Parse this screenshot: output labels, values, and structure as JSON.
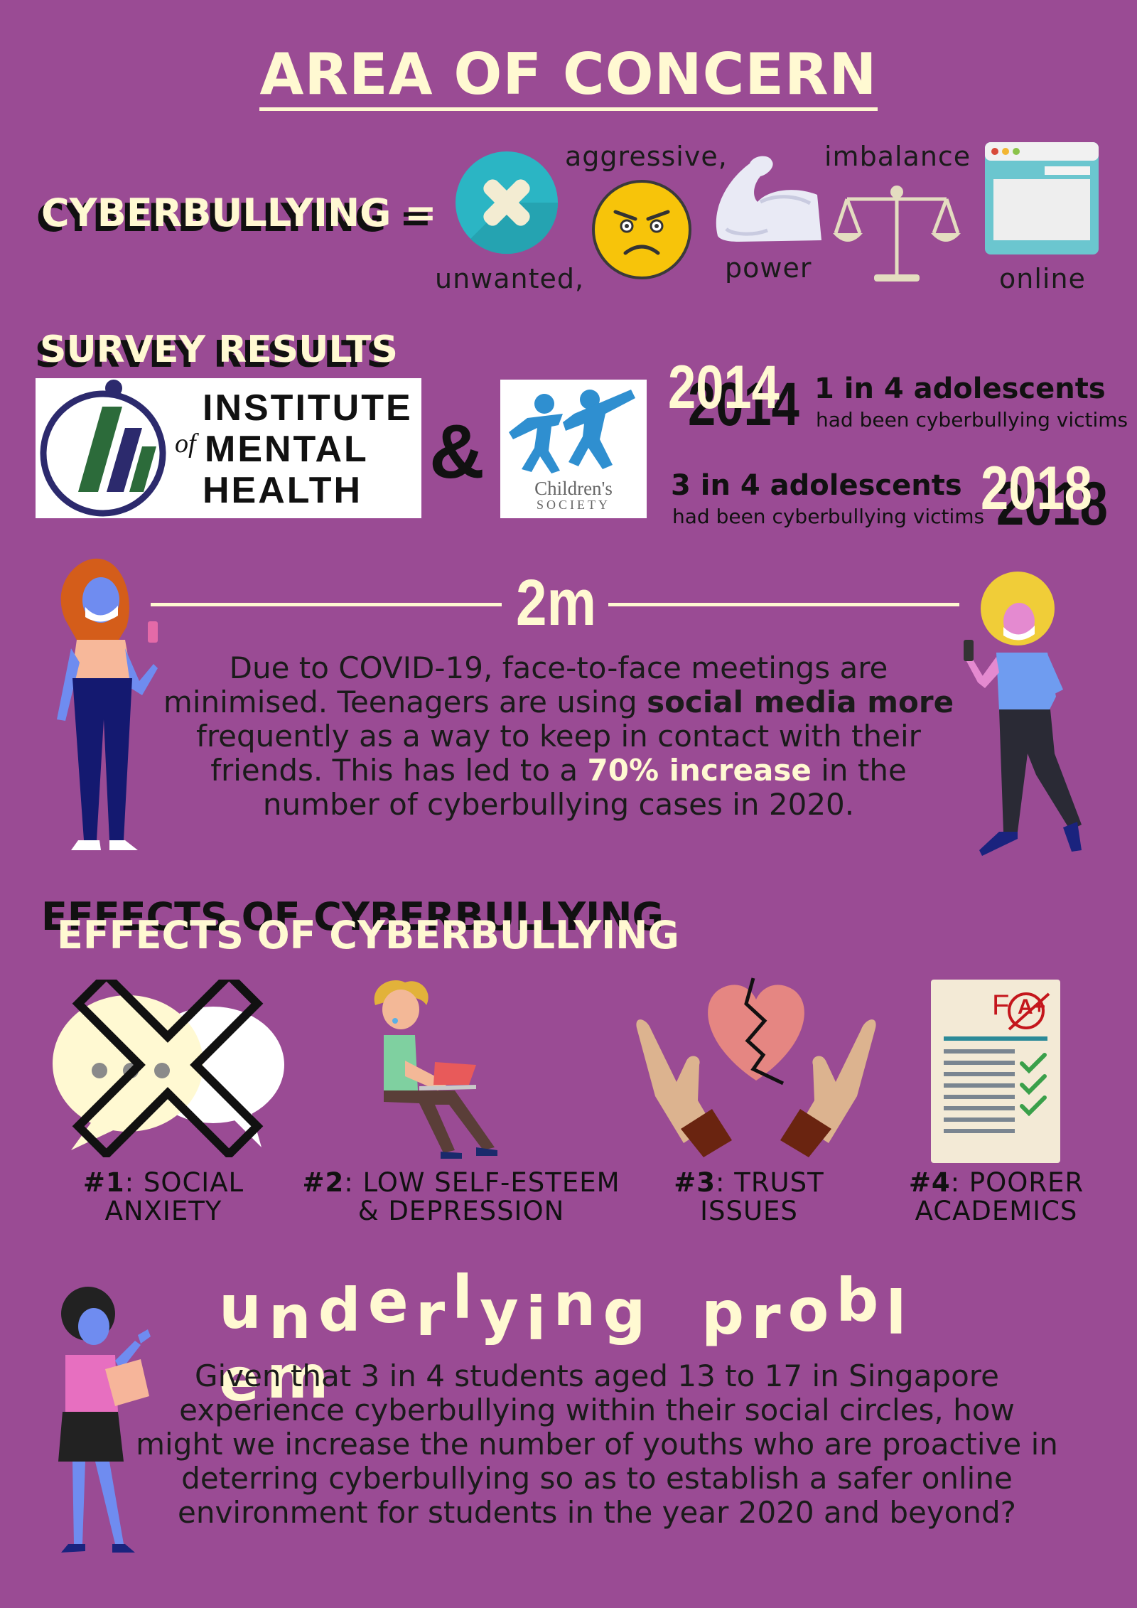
{
  "header": {
    "title": "AREA OF CONCERN"
  },
  "definition": {
    "term": "CYBERBULLYING =",
    "items": [
      {
        "label": "unwanted,",
        "icon": "x-circle-icon"
      },
      {
        "label": "aggressive,",
        "icon": "angry-face-icon"
      },
      {
        "label": "power",
        "icon": "flexed-arm-icon"
      },
      {
        "label": "imbalance",
        "icon": "balance-scale-icon"
      },
      {
        "label": "online",
        "icon": "browser-window-icon"
      }
    ]
  },
  "survey": {
    "heading": "SURVEY RESULTS",
    "imh_logo": {
      "line1": "INSTITUTE",
      "of": "of",
      "line2": "MENTAL",
      "line3": "HEALTH"
    },
    "ampersand": "&",
    "cs_logo": {
      "line1": "Children's",
      "line2": "SOCIETY"
    },
    "stats": [
      {
        "year": "2014",
        "headline": "1 in 4 adolescents",
        "detail": "had been cyberbullying victims"
      },
      {
        "year": "2018",
        "headline": "3 in 4 adolescents",
        "detail": "had been cyberbullying victims"
      }
    ]
  },
  "distance": {
    "label": "2m"
  },
  "covid": {
    "line1": "Due to COVID-19, face-to-face meetings are",
    "line2a": "minimised. Teenagers are using ",
    "line2b": "social media more",
    "line3": "frequently as a way to keep in contact with their",
    "line4a": "friends. This has led to a ",
    "line4b": "70% increase",
    "line4c": " in the",
    "line5": "number of cyberbullying cases in 2020."
  },
  "effects": {
    "heading": "EFFECTS OF CYBERBULLYING",
    "items": [
      {
        "num": "#1",
        "line1": ": SOCIAL",
        "line2": "ANXIETY"
      },
      {
        "num": "#2",
        "line1": ": LOW SELF-ESTEEM",
        "line2": "& DEPRESSION"
      },
      {
        "num": "#3",
        "line1": ": TRUST",
        "line2": "ISSUES"
      },
      {
        "num": "#4",
        "line1": ": POORER",
        "line2": "ACADEMICS"
      }
    ],
    "grade_marks": {
      "f": "F",
      "aplus": "A+"
    }
  },
  "underlying": {
    "heading": "underlying problem",
    "lines": [
      "Given that 3 in 4 students aged 13 to 17 in Singapore",
      "experience cyberbullying within their social circles, how",
      "might we increase the number of youths who are proactive in",
      "deterring cyberbullying so as to establish a safer online",
      "environment for students in the year 2020 and beyond?"
    ]
  },
  "colors": {
    "background": "#9a4b94",
    "cream": "#fff9d2",
    "teal": "#2bb5c4",
    "yellow": "#f7c40a"
  }
}
